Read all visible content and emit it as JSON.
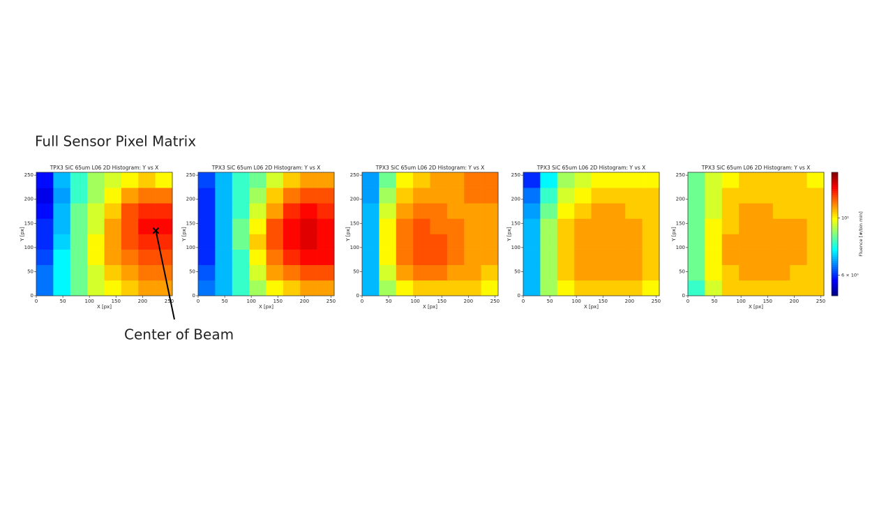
{
  "title": "Full Sensor Pixel Matrix",
  "chart_data": [
    {
      "type": "heatmap",
      "title": "TPX3 SiC 65um L06 2D Histogram: Y vs X",
      "xlabel": "X [px]",
      "ylabel": "Y [px]",
      "xlim": [
        0,
        256
      ],
      "ylim": [
        0,
        256
      ],
      "xticks": [
        0,
        50,
        100,
        150,
        200,
        250
      ],
      "yticks": [
        0,
        50,
        100,
        150,
        200,
        250
      ],
      "zlim": [
        5,
        15
      ],
      "zscale": "log",
      "colormap": "jet",
      "z": [
        [
          6.5,
          7.5,
          8.5,
          9.5,
          10,
          10.5,
          11,
          11
        ],
        [
          6.5,
          7.5,
          8.5,
          9.5,
          10.5,
          11,
          11.5,
          11.5
        ],
        [
          6.2,
          7.5,
          8.5,
          10,
          11,
          11.5,
          12,
          12
        ],
        [
          6,
          7.2,
          8.5,
          10,
          11,
          12,
          12.5,
          12.5
        ],
        [
          6,
          7,
          8.5,
          9.5,
          11,
          12,
          13,
          13
        ],
        [
          5.8,
          7,
          8.5,
          9.5,
          10.5,
          12,
          12.5,
          12.5
        ],
        [
          5.6,
          6.8,
          8,
          9,
          10,
          11,
          11.5,
          11.5
        ],
        [
          5.8,
          7,
          8,
          9,
          9.5,
          10,
          10.5,
          10
        ]
      ],
      "annotation": {
        "text": "Center of Beam",
        "x": 225,
        "y": 135
      }
    },
    {
      "type": "heatmap",
      "title": "TPX3 SiC 65um L06 2D Histogram: Y vs X",
      "xlabel": "X [px]",
      "ylabel": "Y [px]",
      "xlim": [
        0,
        256
      ],
      "ylim": [
        0,
        256
      ],
      "xticks": [
        0,
        50,
        100,
        150,
        200,
        250
      ],
      "yticks": [
        0,
        50,
        100,
        150,
        200,
        250
      ],
      "zlim": [
        5,
        15
      ],
      "zscale": "log",
      "colormap": "jet",
      "z": [
        [
          6.5,
          7,
          8,
          9,
          10,
          10.5,
          11,
          11
        ],
        [
          6.3,
          7,
          8,
          9.5,
          11,
          11.5,
          12,
          12
        ],
        [
          6,
          7,
          8,
          10,
          11.5,
          12.5,
          13,
          13
        ],
        [
          6,
          7,
          8.5,
          10.5,
          12,
          13,
          13.5,
          13
        ],
        [
          6,
          7,
          8.5,
          10,
          12,
          13,
          13.5,
          13
        ],
        [
          6,
          7,
          8,
          9.5,
          11,
          12.5,
          13,
          12.5
        ],
        [
          6,
          7,
          8,
          9,
          10.5,
          11.5,
          12,
          12
        ],
        [
          6.2,
          7,
          8,
          8.5,
          9.5,
          10.5,
          11,
          11
        ]
      ]
    },
    {
      "type": "heatmap",
      "title": "TPX3 SiC 65um L06 2D Histogram: Y vs X",
      "xlabel": "X [px]",
      "ylabel": "Y [px]",
      "xlim": [
        0,
        256
      ],
      "ylim": [
        0,
        256
      ],
      "xticks": [
        0,
        50,
        100,
        150,
        200,
        250
      ],
      "yticks": [
        0,
        50,
        100,
        150,
        200,
        250
      ],
      "zlim": [
        5,
        15
      ],
      "zscale": "log",
      "colormap": "jet",
      "z": [
        [
          7,
          9,
          10,
          10.5,
          10.5,
          10.5,
          10.5,
          10
        ],
        [
          7,
          9.5,
          11,
          11.5,
          11.5,
          11,
          11,
          10.5
        ],
        [
          7,
          10,
          11.5,
          12,
          12,
          11.5,
          11,
          11
        ],
        [
          7,
          10,
          11.5,
          12,
          12,
          11.5,
          11,
          11
        ],
        [
          7,
          10,
          11.5,
          12,
          11.5,
          11.5,
          11,
          11
        ],
        [
          7,
          9.5,
          11,
          11.5,
          11.5,
          11,
          11,
          11
        ],
        [
          6.8,
          9,
          10.5,
          11,
          11,
          11,
          11.5,
          11.5
        ],
        [
          6.8,
          8.5,
          10,
          10.5,
          11,
          11,
          11.5,
          11.5
        ]
      ]
    },
    {
      "type": "heatmap",
      "title": "TPX3 SiC 65um L06 2D Histogram: Y vs X",
      "xlabel": "X [px]",
      "ylabel": "Y [px]",
      "xlim": [
        0,
        256
      ],
      "ylim": [
        0,
        256
      ],
      "xticks": [
        0,
        50,
        100,
        150,
        200,
        250
      ],
      "yticks": [
        0,
        50,
        100,
        150,
        200,
        250
      ],
      "zlim": [
        5,
        15
      ],
      "zscale": "log",
      "colormap": "jet",
      "z": [
        [
          7,
          9,
          10,
          10.5,
          10.5,
          10.5,
          10.5,
          10
        ],
        [
          7,
          9,
          10.5,
          11,
          11,
          11,
          11,
          10.5
        ],
        [
          7,
          9,
          10.5,
          11,
          11,
          11,
          11,
          10.5
        ],
        [
          7,
          9,
          10.5,
          11,
          11,
          11,
          11,
          10.5
        ],
        [
          7,
          9,
          10.5,
          11,
          11,
          11,
          11,
          10.5
        ],
        [
          6.8,
          8.5,
          10,
          10.5,
          11,
          11,
          10.5,
          10.5
        ],
        [
          6.5,
          8,
          9.5,
          10,
          10.5,
          10.5,
          10.5,
          10.5
        ],
        [
          6,
          7.5,
          9,
          9.5,
          10,
          10,
          10,
          10
        ]
      ]
    },
    {
      "type": "heatmap",
      "title": "TPX3 SiC 65um L06 2D Histogram: Y vs X",
      "xlabel": "X [px]",
      "ylabel": "Y [px]",
      "xlim": [
        0,
        256
      ],
      "ylim": [
        0,
        256
      ],
      "xticks": [
        0,
        50,
        100,
        150,
        200,
        250
      ],
      "yticks": [
        0,
        50,
        100,
        150,
        200,
        250
      ],
      "zlim": [
        5,
        15
      ],
      "zscale": "log",
      "colormap": "jet",
      "z": [
        [
          8,
          9.5,
          10.5,
          10.5,
          10.5,
          10.5,
          10.5,
          10.5
        ],
        [
          8.5,
          10,
          10.5,
          11,
          11,
          11,
          10.5,
          10.5
        ],
        [
          8.5,
          10,
          11,
          11,
          11,
          11,
          11,
          10.5
        ],
        [
          8.5,
          10,
          11,
          11,
          11,
          11,
          11,
          10.5
        ],
        [
          8.5,
          10,
          10.5,
          11,
          11,
          11,
          11,
          10.5
        ],
        [
          8.5,
          9.5,
          10.5,
          11,
          11,
          10.5,
          10.5,
          10.5
        ],
        [
          8.5,
          9.5,
          10.5,
          10.5,
          10.5,
          10.5,
          10.5,
          10.5
        ],
        [
          8.5,
          9.5,
          10,
          10.5,
          10.5,
          10.5,
          10.5,
          10
        ]
      ],
      "colorbar": {
        "label": "Fluence [#/bin min]",
        "ticks": [
          {
            "value": 6,
            "label": "6 × 10⁰"
          },
          {
            "value": 10,
            "label": "10¹"
          }
        ]
      }
    }
  ]
}
